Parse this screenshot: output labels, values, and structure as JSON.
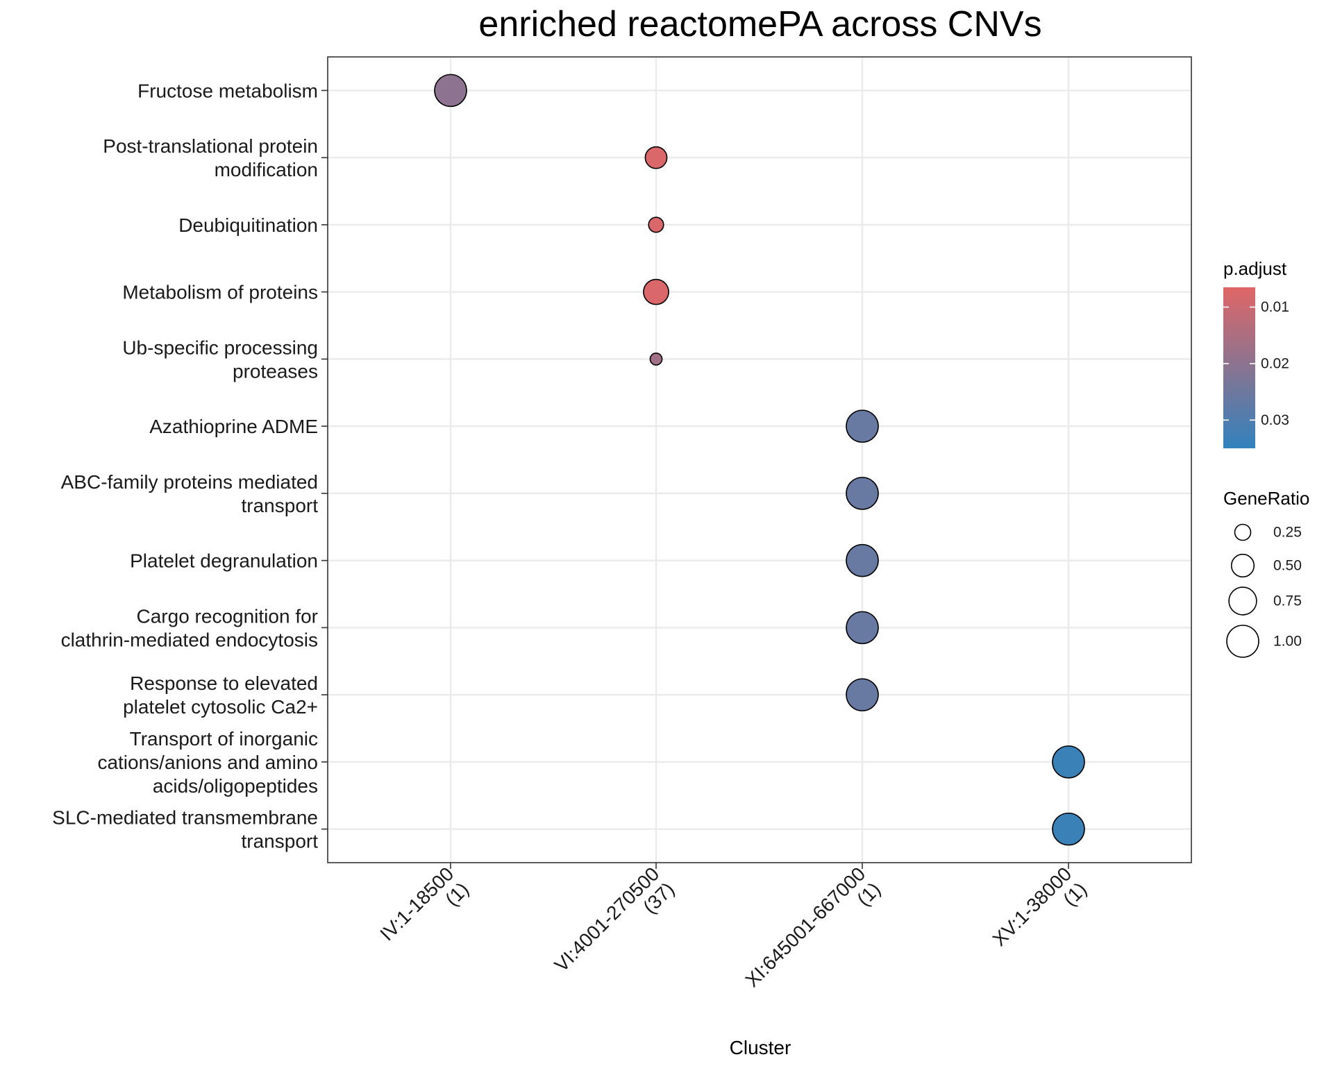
{
  "chart_data": {
    "type": "scatter",
    "title": "enriched reactomePA across CNVs",
    "xlabel": "Cluster",
    "ylabel": "",
    "categories": [
      [
        "IV:1-18500",
        "(1)"
      ],
      [
        "VI:4001-270500",
        "(37)"
      ],
      [
        "XI:645001-667000",
        "(1)"
      ],
      [
        "XV:1-38000",
        "(1)"
      ]
    ],
    "terms": [
      [
        "Fructose metabolism"
      ],
      [
        "Post-translational protein",
        "modification"
      ],
      [
        "Deubiquitination"
      ],
      [
        "Metabolism of proteins"
      ],
      [
        "Ub-specific processing",
        "proteases"
      ],
      [
        "Azathioprine ADME"
      ],
      [
        "ABC-family proteins mediated",
        "transport"
      ],
      [
        "Platelet degranulation"
      ],
      [
        "Cargo recognition for",
        "clathrin-mediated endocytosis"
      ],
      [
        "Response to elevated",
        "platelet cytosolic Ca2+"
      ],
      [
        "Transport of inorganic",
        "cations/anions and amino",
        "acids/oligopeptides"
      ],
      [
        "SLC-mediated transmembrane",
        "transport"
      ]
    ],
    "points": [
      {
        "term": 0,
        "cluster": 0,
        "GeneRatio": 1.0,
        "p_adjust": 0.02
      },
      {
        "term": 1,
        "cluster": 1,
        "GeneRatio": 0.46,
        "p_adjust": 0.0075
      },
      {
        "term": 2,
        "cluster": 1,
        "GeneRatio": 0.22,
        "p_adjust": 0.0075
      },
      {
        "term": 3,
        "cluster": 1,
        "GeneRatio": 0.62,
        "p_adjust": 0.0075
      },
      {
        "term": 4,
        "cluster": 1,
        "GeneRatio": 0.14,
        "p_adjust": 0.017
      },
      {
        "term": 5,
        "cluster": 2,
        "GeneRatio": 1.0,
        "p_adjust": 0.026
      },
      {
        "term": 6,
        "cluster": 2,
        "GeneRatio": 1.0,
        "p_adjust": 0.026
      },
      {
        "term": 7,
        "cluster": 2,
        "GeneRatio": 1.0,
        "p_adjust": 0.026
      },
      {
        "term": 8,
        "cluster": 2,
        "GeneRatio": 1.0,
        "p_adjust": 0.026
      },
      {
        "term": 9,
        "cluster": 2,
        "GeneRatio": 1.0,
        "p_adjust": 0.026
      },
      {
        "term": 10,
        "cluster": 3,
        "GeneRatio": 1.0,
        "p_adjust": 0.0335
      },
      {
        "term": 11,
        "cluster": 3,
        "GeneRatio": 1.0,
        "p_adjust": 0.0335
      }
    ],
    "color_legend": {
      "title": "p.adjust",
      "ticks": [
        0.01,
        0.02,
        0.03
      ],
      "tick_labels": [
        "0.01",
        "0.02",
        "0.03"
      ],
      "range": [
        0.0065,
        0.035
      ],
      "low_color": "#E06666",
      "high_color": "#3182BD"
    },
    "size_legend": {
      "title": "GeneRatio",
      "values": [
        0.25,
        0.5,
        0.75,
        1.0
      ],
      "labels": [
        "0.25",
        "0.50",
        "0.75",
        "1.00"
      ]
    },
    "grid": true,
    "legend_position": "right"
  }
}
